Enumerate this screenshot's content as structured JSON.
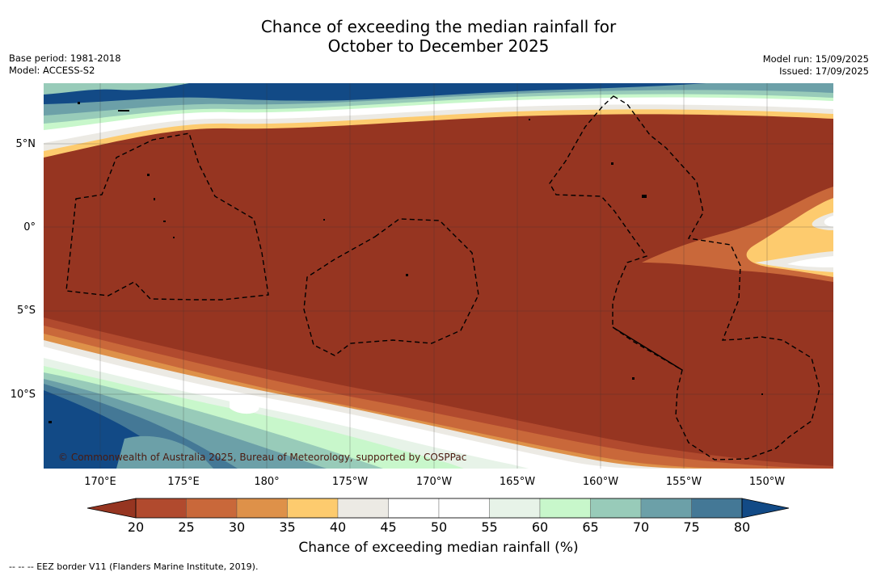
{
  "title": {
    "line1": "Chance of exceeding the median rainfall for",
    "line2": "October to December 2025"
  },
  "meta_left": {
    "base_period": "Base period: 1981-2018",
    "model": "Model: ACCESS-S2"
  },
  "meta_right": {
    "model_run": "Model run: 15/09/2025",
    "issued": "Issued: 17/09/2025"
  },
  "map": {
    "copyright": "© Commonwealth of Australia 2025, Bureau of Meteorology, supported by COSPPac",
    "lat_labels": [
      "5°N",
      "0°",
      "5°S",
      "10°S"
    ],
    "lon_labels": [
      "170°E",
      "175°E",
      "180°",
      "175°W",
      "170°W",
      "165°W",
      "160°W",
      "155°W",
      "150°W"
    ],
    "eez_line_style": "dashed black"
  },
  "colorbar": {
    "ticks": [
      "20",
      "25",
      "30",
      "35",
      "40",
      "45",
      "50",
      "55",
      "60",
      "65",
      "70",
      "75",
      "80"
    ],
    "label": "Chance of exceeding median rainfall (%)",
    "colors": [
      "#963521",
      "#b14a2e",
      "#c9683a",
      "#de9149",
      "#fdcb6e",
      "#eceae4",
      "#ffffff",
      "#ffffff",
      "#e7f3e8",
      "#c8f7cb",
      "#98cbb9",
      "#6ca0a8",
      "#447896",
      "#124a86"
    ],
    "extend": "both"
  },
  "footnote": "--  --  -- EEZ border V11 (Flanders Marine Institute, 2019)."
}
